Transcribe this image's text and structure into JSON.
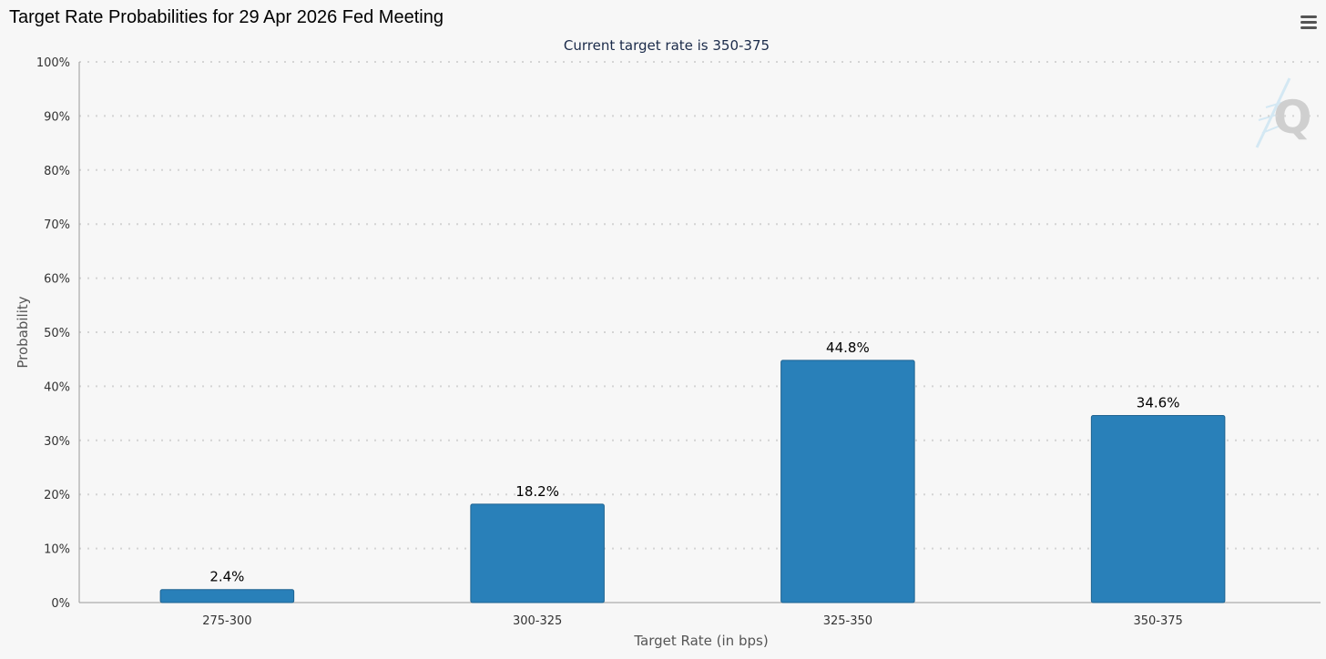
{
  "page": {
    "title": "Target Rate Probabilities for 29 Apr 2026 Fed Meeting",
    "menu_icon": "hamburger-menu-icon",
    "watermark_icon": "quikstrike-q-logo-icon"
  },
  "chart_data": {
    "type": "bar",
    "title": "Target Rate Probabilities for 29 Apr 2026 Fed Meeting",
    "subtitle": "Current target rate is 350-375",
    "xlabel": "Target Rate (in bps)",
    "ylabel": "Probability",
    "categories": [
      "275-300",
      "300-325",
      "325-350",
      "350-375"
    ],
    "values": [
      2.4,
      18.2,
      44.8,
      34.6
    ],
    "data_labels": [
      "2.4%",
      "18.2%",
      "44.8%",
      "34.6%"
    ],
    "ylim": [
      0,
      100
    ],
    "y_ticks": [
      "0%",
      "10%",
      "20%",
      "30%",
      "40%",
      "50%",
      "60%",
      "70%",
      "80%",
      "90%",
      "100%"
    ],
    "grid": true,
    "legend": "none",
    "bar_color": "#2980b9",
    "bar_border_color": "#1f6391"
  }
}
